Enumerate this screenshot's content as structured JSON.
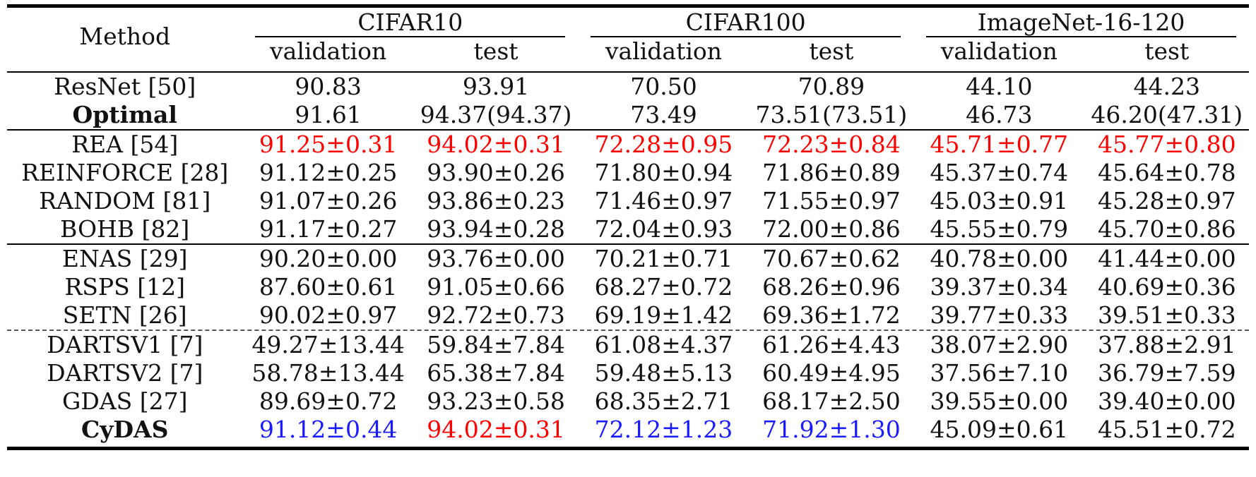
{
  "header": {
    "method": "Method",
    "groups": [
      "CIFAR10",
      "CIFAR100",
      "ImageNet-16-120"
    ],
    "sub": [
      "validation",
      "test",
      "validation",
      "test",
      "validation",
      "test"
    ]
  },
  "sections": [
    {
      "rows": [
        {
          "method": "ResNet [50]",
          "bold": false,
          "cells": [
            {
              "v": "90.83"
            },
            {
              "v": "93.91"
            },
            {
              "v": "70.50"
            },
            {
              "v": "70.89"
            },
            {
              "v": "44.10"
            },
            {
              "v": "44.23"
            }
          ]
        },
        {
          "method": "Optimal",
          "bold": true,
          "cells": [
            {
              "v": "91.61"
            },
            {
              "v": "94.37(94.37)"
            },
            {
              "v": "73.49"
            },
            {
              "v": "73.51(73.51)"
            },
            {
              "v": "46.73"
            },
            {
              "v": "46.20(47.31)"
            }
          ]
        }
      ],
      "after": "mid"
    },
    {
      "rows": [
        {
          "method": "REA [54]",
          "bold": false,
          "cells": [
            {
              "v": "91.25±0.31",
              "c": "red"
            },
            {
              "v": "94.02±0.31",
              "c": "red"
            },
            {
              "v": "72.28±0.95",
              "c": "red"
            },
            {
              "v": "72.23±0.84",
              "c": "red"
            },
            {
              "v": "45.71±0.77",
              "c": "red"
            },
            {
              "v": "45.77±0.80",
              "c": "red"
            }
          ]
        },
        {
          "method": "REINFORCE [28]",
          "bold": false,
          "cells": [
            {
              "v": "91.12±0.25"
            },
            {
              "v": "93.90±0.26"
            },
            {
              "v": "71.80±0.94"
            },
            {
              "v": "71.86±0.89"
            },
            {
              "v": "45.37±0.74"
            },
            {
              "v": "45.64±0.78"
            }
          ]
        },
        {
          "method": "RANDOM [81]",
          "bold": false,
          "cells": [
            {
              "v": "91.07±0.26"
            },
            {
              "v": "93.86±0.23"
            },
            {
              "v": "71.46±0.97"
            },
            {
              "v": "71.55±0.97"
            },
            {
              "v": "45.03±0.91"
            },
            {
              "v": "45.28±0.97"
            }
          ]
        },
        {
          "method": "BOHB [82]",
          "bold": false,
          "cells": [
            {
              "v": "91.17±0.27"
            },
            {
              "v": "93.94±0.28"
            },
            {
              "v": "72.04±0.93"
            },
            {
              "v": "72.00±0.86"
            },
            {
              "v": "45.55±0.79"
            },
            {
              "v": "45.70±0.86"
            }
          ]
        }
      ],
      "after": "mid"
    },
    {
      "rows": [
        {
          "method": "ENAS [29]",
          "bold": false,
          "cells": [
            {
              "v": "90.20±0.00"
            },
            {
              "v": "93.76±0.00"
            },
            {
              "v": "70.21±0.71"
            },
            {
              "v": "70.67±0.62"
            },
            {
              "v": "40.78±0.00"
            },
            {
              "v": "41.44±0.00"
            }
          ]
        },
        {
          "method": "RSPS [12]",
          "bold": false,
          "cells": [
            {
              "v": "87.60±0.61"
            },
            {
              "v": "91.05±0.66"
            },
            {
              "v": "68.27±0.72"
            },
            {
              "v": "68.26±0.96"
            },
            {
              "v": "39.37±0.34"
            },
            {
              "v": "40.69±0.36"
            }
          ]
        },
        {
          "method": "SETN [26]",
          "bold": false,
          "cells": [
            {
              "v": "90.02±0.97"
            },
            {
              "v": "92.72±0.73"
            },
            {
              "v": "69.19±1.42"
            },
            {
              "v": "69.36±1.72"
            },
            {
              "v": "39.77±0.33"
            },
            {
              "v": "39.51±0.33"
            }
          ]
        }
      ],
      "after": "dotted"
    },
    {
      "rows": [
        {
          "method": "DARTSV1 [7]",
          "bold": false,
          "cells": [
            {
              "v": "49.27±13.44"
            },
            {
              "v": "59.84±7.84"
            },
            {
              "v": "61.08±4.37"
            },
            {
              "v": "61.26±4.43"
            },
            {
              "v": "38.07±2.90"
            },
            {
              "v": "37.88±2.91"
            }
          ]
        },
        {
          "method": "DARTSV2 [7]",
          "bold": false,
          "cells": [
            {
              "v": "58.78±13.44"
            },
            {
              "v": "65.38±7.84"
            },
            {
              "v": "59.48±5.13"
            },
            {
              "v": "60.49±4.95"
            },
            {
              "v": "37.56±7.10"
            },
            {
              "v": "36.79±7.59"
            }
          ]
        },
        {
          "method": "GDAS [27]",
          "bold": false,
          "cells": [
            {
              "v": "89.69±0.72"
            },
            {
              "v": "93.23±0.58"
            },
            {
              "v": "68.35±2.71"
            },
            {
              "v": "68.17±2.50"
            },
            {
              "v": "39.55±0.00"
            },
            {
              "v": "39.40±0.00"
            }
          ]
        },
        {
          "method": "CyDAS",
          "bold": true,
          "cells": [
            {
              "v": "91.12±0.44",
              "c": "blue"
            },
            {
              "v": "94.02±0.31",
              "c": "red"
            },
            {
              "v": "72.12±1.23",
              "c": "blue"
            },
            {
              "v": "71.92±1.30",
              "c": "blue"
            },
            {
              "v": "45.09±0.61"
            },
            {
              "v": "45.51±0.72"
            }
          ]
        }
      ],
      "after": "heavy"
    }
  ],
  "colors": {
    "red": "#ff0000",
    "blue": "#1a1aff",
    "rule": "#000000"
  }
}
